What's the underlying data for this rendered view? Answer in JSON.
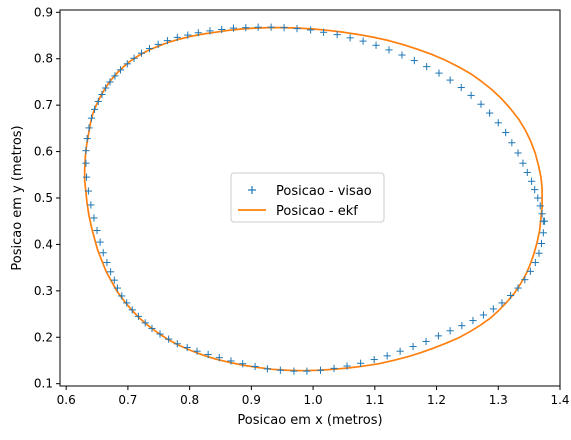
{
  "chart_data": {
    "type": "scatter",
    "title": "",
    "xlabel": "Posicao em x (metros)",
    "ylabel": "Posicao em y (metros)",
    "xlim": [
      0.59,
      1.4
    ],
    "ylim": [
      0.095,
      0.905
    ],
    "xticks": [
      0.6,
      0.7,
      0.8,
      0.9,
      1.0,
      1.1,
      1.2,
      1.3,
      1.4
    ],
    "xtick_labels": [
      "0.6",
      "0.7",
      "0.8",
      "0.9",
      "1.0",
      "1.1",
      "1.2",
      "1.3",
      "1.4"
    ],
    "yticks": [
      0.1,
      0.2,
      0.3,
      0.4,
      0.5,
      0.6,
      0.7,
      0.8,
      0.9
    ],
    "ytick_labels": [
      "0.1",
      "0.2",
      "0.3",
      "0.4",
      "0.5",
      "0.6",
      "0.7",
      "0.8",
      "0.9"
    ],
    "grid": false,
    "legend_position": "center",
    "series": [
      {
        "name": "Posicao - visao",
        "kind": "markers",
        "marker": "+",
        "color": "#1f77b4",
        "x": [
          1.375,
          1.373,
          1.37,
          1.366,
          1.36,
          1.352,
          1.343,
          1.332,
          1.32,
          1.306,
          1.292,
          1.276,
          1.259,
          1.241,
          1.222,
          1.203,
          1.183,
          1.162,
          1.141,
          1.12,
          1.099,
          1.077,
          1.055,
          1.034,
          1.012,
          0.99,
          0.969,
          0.947,
          0.926,
          0.906,
          0.886,
          0.867,
          0.848,
          0.83,
          0.812,
          0.796,
          0.78,
          0.766,
          0.752,
          0.739,
          0.728,
          0.717,
          0.707,
          0.698,
          0.69,
          0.683,
          0.678,
          0.672,
          0.666,
          0.66,
          0.655,
          0.65,
          0.645,
          0.64,
          0.636,
          0.633,
          0.632,
          0.632,
          0.634,
          0.637,
          0.641,
          0.646,
          0.652,
          0.658,
          0.664,
          0.671,
          0.679,
          0.688,
          0.699,
          0.71,
          0.722,
          0.735,
          0.749,
          0.764,
          0.78,
          0.797,
          0.814,
          0.833,
          0.852,
          0.871,
          0.891,
          0.911,
          0.932,
          0.953,
          0.974,
          0.996,
          1.017,
          1.039,
          1.06,
          1.081,
          1.102,
          1.123,
          1.144,
          1.164,
          1.184,
          1.204,
          1.222,
          1.24,
          1.256,
          1.272,
          1.286,
          1.3,
          1.312,
          1.322,
          1.332,
          1.34,
          1.347,
          1.354,
          1.359,
          1.364,
          1.368,
          1.371,
          1.373
        ],
        "y": [
          0.45,
          0.425,
          0.402,
          0.381,
          0.361,
          0.342,
          0.324,
          0.306,
          0.29,
          0.274,
          0.261,
          0.248,
          0.236,
          0.225,
          0.214,
          0.203,
          0.191,
          0.18,
          0.17,
          0.16,
          0.152,
          0.144,
          0.138,
          0.133,
          0.129,
          0.127,
          0.127,
          0.129,
          0.132,
          0.137,
          0.143,
          0.149,
          0.156,
          0.163,
          0.17,
          0.178,
          0.186,
          0.196,
          0.207,
          0.219,
          0.231,
          0.245,
          0.259,
          0.274,
          0.289,
          0.306,
          0.323,
          0.341,
          0.361,
          0.382,
          0.405,
          0.43,
          0.457,
          0.485,
          0.515,
          0.545,
          0.575,
          0.602,
          0.628,
          0.651,
          0.672,
          0.691,
          0.708,
          0.723,
          0.737,
          0.75,
          0.763,
          0.776,
          0.789,
          0.801,
          0.812,
          0.822,
          0.831,
          0.839,
          0.846,
          0.851,
          0.856,
          0.86,
          0.863,
          0.866,
          0.867,
          0.868,
          0.868,
          0.867,
          0.865,
          0.862,
          0.857,
          0.852,
          0.845,
          0.838,
          0.829,
          0.819,
          0.808,
          0.796,
          0.783,
          0.769,
          0.754,
          0.738,
          0.721,
          0.702,
          0.683,
          0.662,
          0.641,
          0.619,
          0.597,
          0.575,
          0.555,
          0.536,
          0.518,
          0.5,
          0.483,
          0.466,
          0.45
        ]
      },
      {
        "name": "Posicao - ekf",
        "kind": "line",
        "color": "#ff7f0e",
        "x": [
          1.371,
          1.371,
          1.369,
          1.367,
          1.363,
          1.358,
          1.352,
          1.345,
          1.336,
          1.326,
          1.314,
          1.301,
          1.287,
          1.271,
          1.254,
          1.236,
          1.217,
          1.196,
          1.175,
          1.153,
          1.13,
          1.107,
          1.082,
          1.058,
          1.033,
          1.008,
          0.983,
          0.958,
          0.934,
          0.91,
          0.886,
          0.864,
          0.842,
          0.821,
          0.801,
          0.782,
          0.764,
          0.748,
          0.733,
          0.719,
          0.706,
          0.694,
          0.683,
          0.674,
          0.665,
          0.658,
          0.651,
          0.646,
          0.641,
          0.637,
          0.634,
          0.632,
          0.63,
          0.63,
          0.631,
          0.633,
          0.636,
          0.639,
          0.643,
          0.649,
          0.656,
          0.664,
          0.673,
          0.683,
          0.694,
          0.706,
          0.719,
          0.733,
          0.749,
          0.765,
          0.783,
          0.801,
          0.821,
          0.841,
          0.862,
          0.884,
          0.906,
          0.929,
          0.953,
          0.977,
          1.001,
          1.025,
          1.05,
          1.074,
          1.099,
          1.123,
          1.147,
          1.17,
          1.193,
          1.214,
          1.235,
          1.255,
          1.273,
          1.29,
          1.306,
          1.32,
          1.333,
          1.344,
          1.353,
          1.36,
          1.365,
          1.369,
          1.371,
          1.371
        ],
        "y": [
          0.5,
          0.48,
          0.455,
          0.43,
          0.405,
          0.381,
          0.358,
          0.336,
          0.315,
          0.295,
          0.276,
          0.258,
          0.241,
          0.226,
          0.212,
          0.199,
          0.188,
          0.177,
          0.167,
          0.158,
          0.15,
          0.143,
          0.138,
          0.134,
          0.131,
          0.129,
          0.128,
          0.129,
          0.131,
          0.135,
          0.14,
          0.146,
          0.153,
          0.162,
          0.172,
          0.183,
          0.196,
          0.21,
          0.225,
          0.241,
          0.259,
          0.278,
          0.298,
          0.319,
          0.341,
          0.364,
          0.388,
          0.412,
          0.437,
          0.462,
          0.487,
          0.512,
          0.538,
          0.563,
          0.588,
          0.613,
          0.636,
          0.659,
          0.681,
          0.701,
          0.72,
          0.738,
          0.755,
          0.77,
          0.784,
          0.797,
          0.808,
          0.818,
          0.827,
          0.835,
          0.842,
          0.848,
          0.853,
          0.857,
          0.861,
          0.864,
          0.866,
          0.867,
          0.867,
          0.866,
          0.864,
          0.861,
          0.857,
          0.852,
          0.846,
          0.839,
          0.83,
          0.82,
          0.809,
          0.797,
          0.783,
          0.768,
          0.751,
          0.733,
          0.713,
          0.692,
          0.67,
          0.646,
          0.621,
          0.596,
          0.571,
          0.546,
          0.521,
          0.5
        ]
      }
    ]
  }
}
